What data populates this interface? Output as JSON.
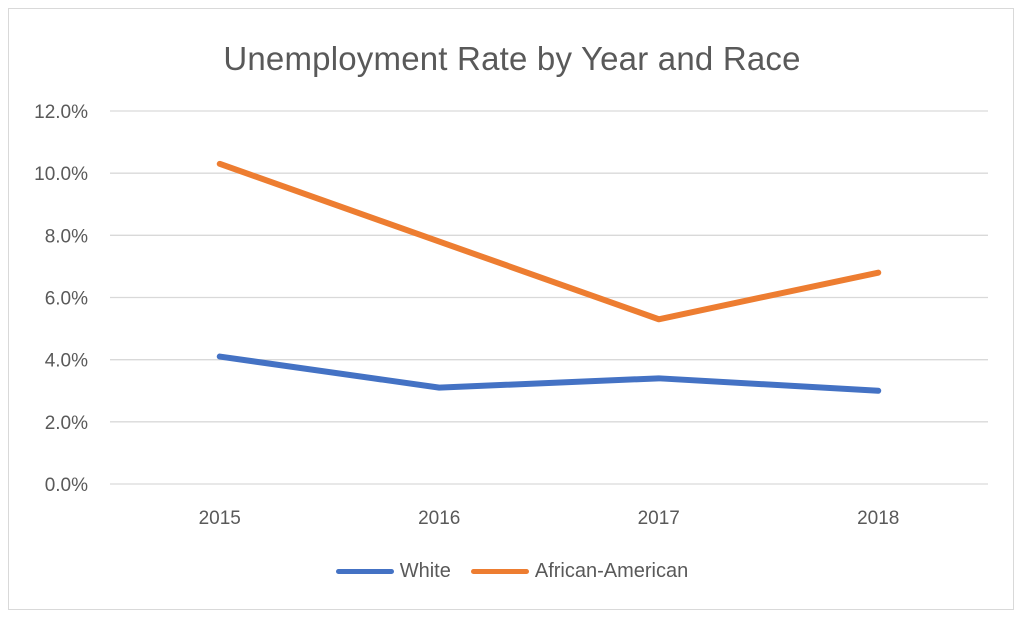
{
  "chart_data": {
    "type": "line",
    "title": "Unemployment Rate by Year and Race",
    "xlabel": "",
    "ylabel": "",
    "categories": [
      "2015",
      "2016",
      "2017",
      "2018"
    ],
    "ylim": [
      0,
      12
    ],
    "yticks": [
      "0.0%",
      "2.0%",
      "4.0%",
      "6.0%",
      "8.0%",
      "10.0%",
      "12.0%"
    ],
    "grid": true,
    "legend_position": "bottom",
    "series": [
      {
        "name": "White",
        "color": "#4472c4",
        "values": [
          4.1,
          3.1,
          3.4,
          3.0
        ]
      },
      {
        "name": "African-American",
        "color": "#ed7d31",
        "values": [
          10.3,
          7.8,
          5.3,
          6.8
        ]
      }
    ]
  }
}
